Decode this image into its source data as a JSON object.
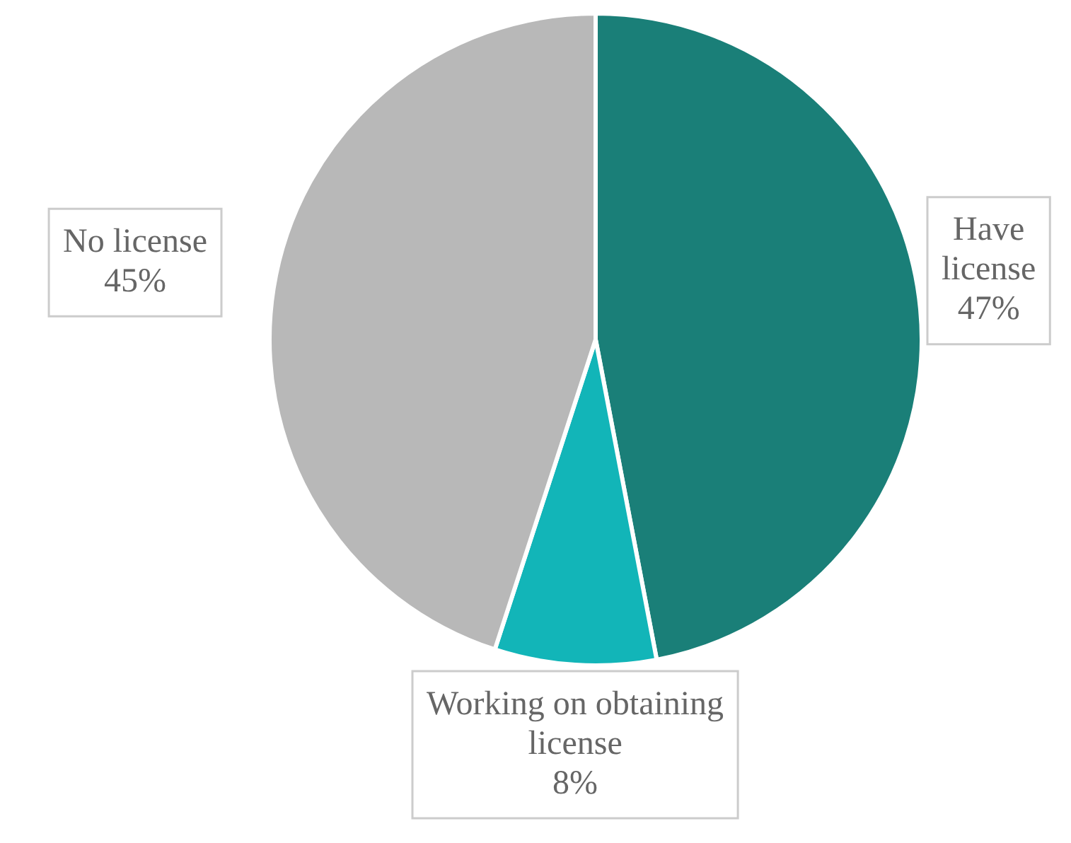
{
  "chart_data": {
    "type": "pie",
    "categories": [
      "Have license",
      "Working on obtaining license",
      "No license"
    ],
    "values": [
      47,
      8,
      45
    ],
    "value_labels": [
      "47%",
      "8%",
      "45%"
    ],
    "colors": [
      "#1a7f78",
      "#12b5b8",
      "#b8b8b8"
    ],
    "legend": false
  }
}
